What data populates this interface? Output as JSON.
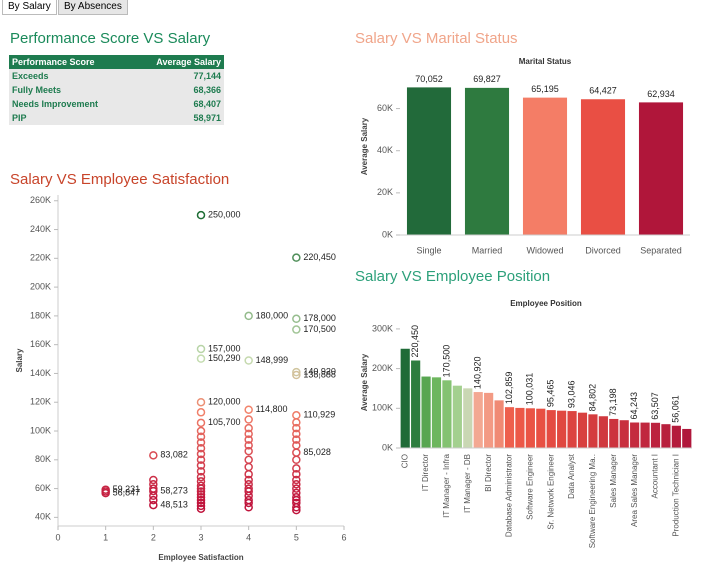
{
  "tabs": [
    "By Salary",
    "By Absences"
  ],
  "table": {
    "title": "Performance Score VS Salary",
    "columns": [
      "Performance Score",
      "Average Salary"
    ],
    "rows": [
      [
        "Exceeds",
        "77,144"
      ],
      [
        "Fully Meets",
        "68,366"
      ],
      [
        "Needs Improvement",
        "68,407"
      ],
      [
        "PIP",
        "58,971"
      ]
    ]
  },
  "chart_data": [
    {
      "type": "bar",
      "title": "Salary VS Marital Status",
      "subtitle": "Marital Status",
      "y_label": "Average Salary",
      "categories": [
        "Single",
        "Married",
        "Widowed",
        "Divorced",
        "Separated"
      ],
      "values": [
        70052,
        69827,
        65195,
        64427,
        62934
      ],
      "value_labels": [
        "70,052",
        "69,827",
        "65,195",
        "64,427",
        "62,934"
      ],
      "colors": [
        "#226a3a",
        "#2e7a3f",
        "#f47d66",
        "#e94f44",
        "#b0163a"
      ],
      "ylim": [
        0,
        84000
      ],
      "yticks": [
        {
          "value": 0,
          "label": "0K"
        },
        {
          "value": 20000,
          "label": "20K"
        },
        {
          "value": 40000,
          "label": "40K"
        },
        {
          "value": 60000,
          "label": "60K"
        }
      ]
    },
    {
      "type": "scatter",
      "title": "Salary VS Employee Satisfaction",
      "x_label": "Employee Satisfaction",
      "y_label": "Salary",
      "x": [
        1,
        1,
        1,
        2,
        2,
        2,
        2,
        2,
        2,
        2,
        2,
        3,
        3,
        3,
        3,
        3,
        3,
        3,
        3,
        3,
        3,
        3,
        3,
        3,
        3,
        3,
        3,
        3,
        3,
        3,
        3,
        3,
        3,
        3,
        3,
        3,
        4,
        4,
        4,
        4,
        4,
        4,
        4,
        4,
        4,
        4,
        4,
        4,
        4,
        4,
        4,
        4,
        4,
        4,
        4,
        4,
        5,
        5,
        5,
        5,
        5,
        5,
        5,
        5,
        5,
        5,
        5,
        5,
        5,
        5,
        5,
        5,
        5,
        5,
        5,
        5,
        5,
        5,
        5,
        5
      ],
      "y": [
        59231,
        58000,
        56847,
        83082,
        66000,
        63000,
        60000,
        58273,
        55000,
        52000,
        48513,
        250000,
        157000,
        150290,
        120000,
        113000,
        105700,
        100000,
        96000,
        92000,
        88000,
        84000,
        80000,
        76000,
        72000,
        68000,
        65000,
        62000,
        60000,
        58000,
        56000,
        54000,
        52000,
        50000,
        48000,
        46000,
        180000,
        148999,
        114800,
        108000,
        102000,
        98000,
        94000,
        90000,
        86000,
        80000,
        75000,
        70000,
        66000,
        63000,
        60000,
        58000,
        55000,
        52000,
        50000,
        47000,
        220450,
        178000,
        170500,
        140920,
        138888,
        110929,
        106000,
        102000,
        98000,
        94000,
        90000,
        85028,
        80000,
        74000,
        70000,
        66000,
        63000,
        60000,
        57000,
        54000,
        52000,
        50000,
        47000,
        45000
      ],
      "value_labels": [
        "59,231",
        null,
        "56,847",
        "83,082",
        null,
        null,
        null,
        "58,273",
        null,
        null,
        "48,513",
        "250,000",
        "157,000",
        "150,290",
        "120,000",
        null,
        "105,700",
        null,
        null,
        null,
        null,
        null,
        null,
        null,
        null,
        null,
        null,
        null,
        null,
        null,
        null,
        null,
        null,
        null,
        null,
        null,
        "180,000",
        "148,999",
        "114,800",
        null,
        null,
        null,
        null,
        null,
        null,
        null,
        null,
        null,
        null,
        null,
        null,
        null,
        null,
        null,
        null,
        null,
        "220,450",
        "178,000",
        "170,500",
        "140,920",
        "138,888",
        "110,929",
        null,
        null,
        null,
        null,
        null,
        "85,028",
        null,
        null,
        null,
        null,
        null,
        null,
        null,
        null,
        null,
        null,
        null,
        null
      ],
      "color_stops": [
        {
          "value": 50000,
          "color": "#c0143c"
        },
        {
          "value": 115000,
          "color": "#f2836b"
        },
        {
          "value": 150000,
          "color": "#c4dcb0"
        },
        {
          "value": 250000,
          "color": "#1f6e36"
        }
      ],
      "xlim": [
        0,
        6
      ],
      "xticks": [
        0,
        1,
        2,
        3,
        4,
        5,
        6
      ],
      "ylim": [
        34000,
        264000
      ],
      "yticks": [
        {
          "value": 40000,
          "label": "40K"
        },
        {
          "value": 60000,
          "label": "60K"
        },
        {
          "value": 80000,
          "label": "80K"
        },
        {
          "value": 100000,
          "label": "100K"
        },
        {
          "value": 120000,
          "label": "120K"
        },
        {
          "value": 140000,
          "label": "140K"
        },
        {
          "value": 160000,
          "label": "160K"
        },
        {
          "value": 180000,
          "label": "180K"
        },
        {
          "value": 200000,
          "label": "200K"
        },
        {
          "value": 220000,
          "label": "220K"
        },
        {
          "value": 240000,
          "label": "240K"
        },
        {
          "value": 260000,
          "label": "260K"
        }
      ]
    },
    {
      "type": "bar",
      "title": "Salary VS Employee Position",
      "subtitle": "Employee Position",
      "y_label": "Average Salary",
      "categories": [
        "CIO",
        null,
        "IT Director",
        null,
        "IT Manager - Infra",
        null,
        "IT Manager - DB",
        null,
        "BI Director",
        null,
        "Database Administrator",
        null,
        "Software Engineer",
        null,
        "Sr. Network Engineer",
        null,
        "Data Analyst",
        null,
        "Software Engineering Ma..",
        null,
        "Sales Manager",
        null,
        "Area Sales Manager",
        null,
        "Accountant I",
        null,
        "Production Technician I",
        null
      ],
      "values": [
        250000,
        220450,
        180000,
        178000,
        170500,
        157000,
        150290,
        140920,
        138888,
        120000,
        102859,
        101000,
        100031,
        99000,
        95465,
        94000,
        93046,
        89000,
        84802,
        80000,
        73198,
        70000,
        64243,
        64000,
        63507,
        60000,
        56061,
        48000
      ],
      "value_labels": [
        null,
        "220,450",
        null,
        null,
        "170,500",
        null,
        null,
        "140,920",
        null,
        null,
        "102,859",
        null,
        "100,031",
        null,
        "95,465",
        null,
        "93,046",
        null,
        "84,802",
        null,
        "73,198",
        null,
        "64,243",
        null,
        "63,507",
        null,
        "56,061",
        null
      ],
      "colors": [
        "#1f6b37",
        "#2d7d3f",
        "#58a651",
        "#6db65e",
        "#84c272",
        "#a3d08f",
        "#c9d7b3",
        "#f3a892",
        "#f39a84",
        "#f08a74",
        "#ee5f4d",
        "#ec5848",
        "#ea5445",
        "#e85043",
        "#e44b42",
        "#e04840",
        "#dc4440",
        "#d8403f",
        "#d43c3e",
        "#d0383e",
        "#cc333e",
        "#c82f3e",
        "#c42b3e",
        "#c0273e",
        "#bc233e",
        "#b81f3d",
        "#b41b3c",
        "#b0173b"
      ],
      "ylim": [
        0,
        330000
      ],
      "yticks": [
        {
          "value": 0,
          "label": "0K"
        },
        {
          "value": 100000,
          "label": "100K"
        },
        {
          "value": 200000,
          "label": "200K"
        },
        {
          "value": 300000,
          "label": "300K"
        }
      ]
    }
  ]
}
